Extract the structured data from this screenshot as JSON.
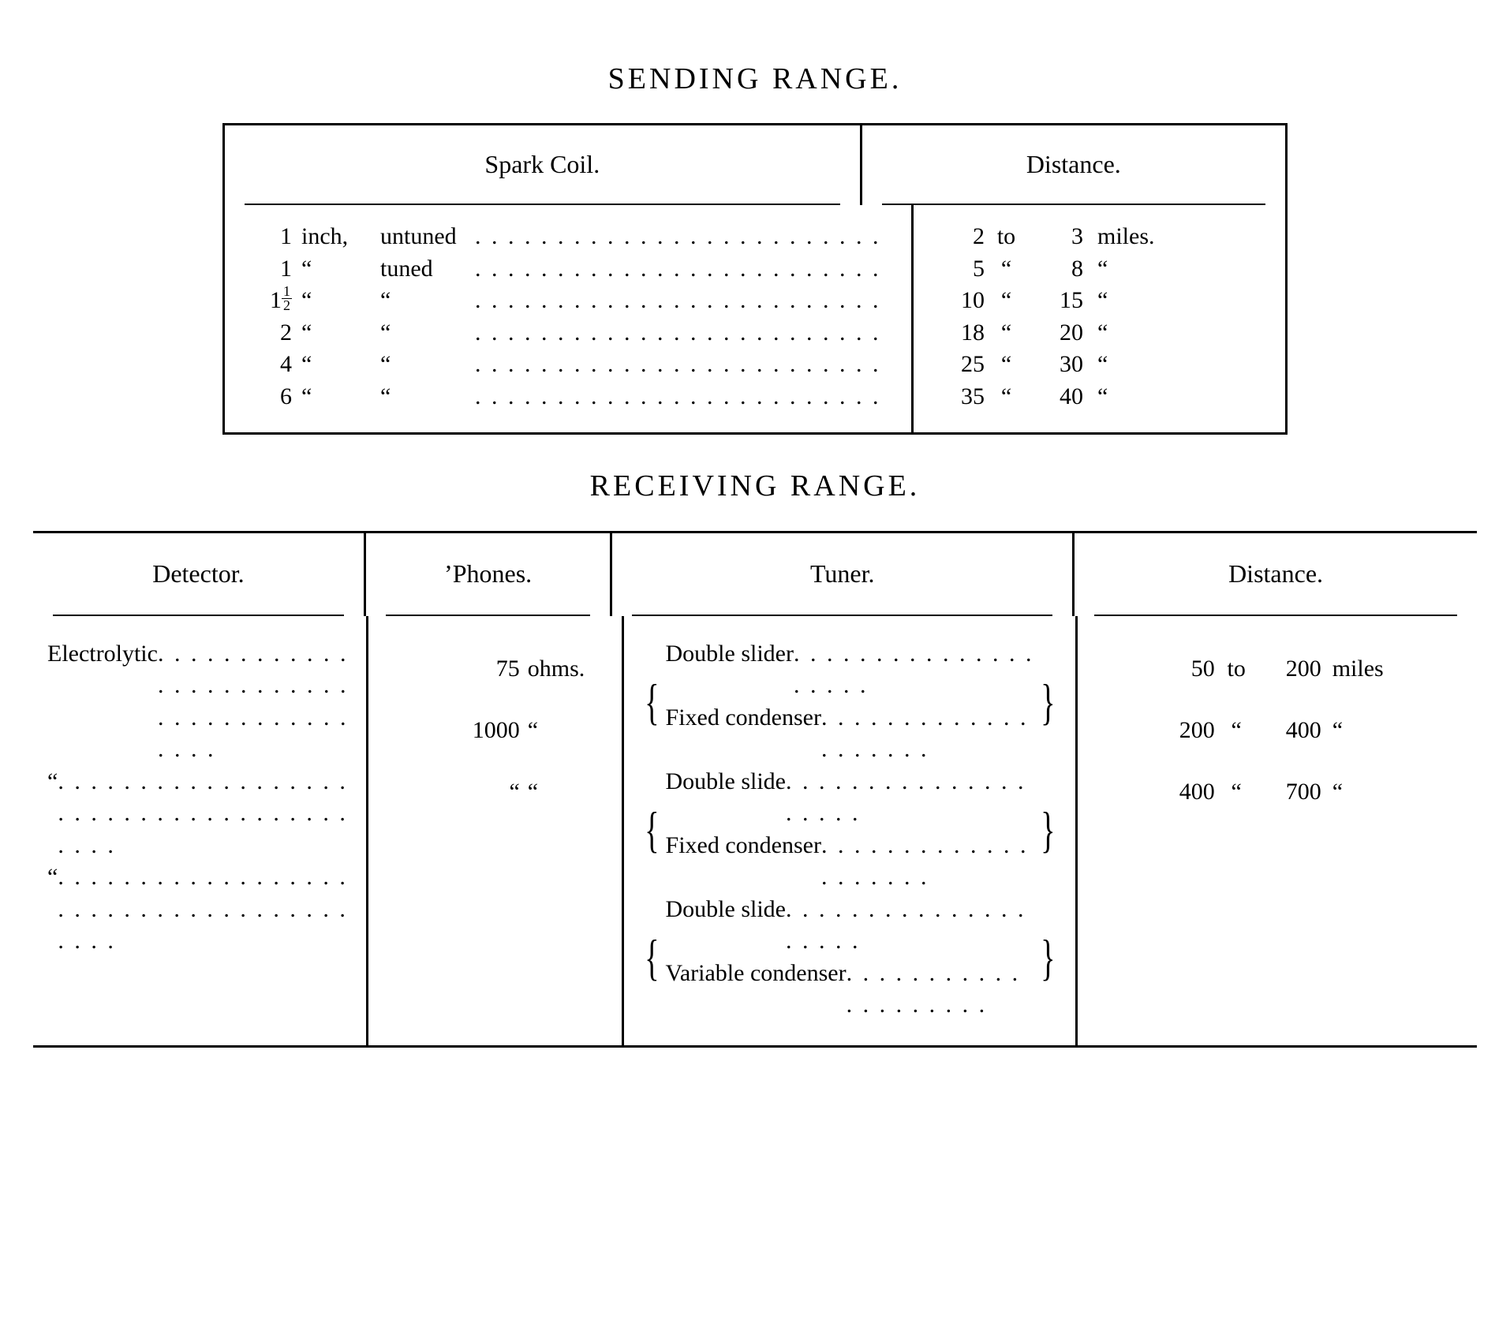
{
  "colors": {
    "fg": "#000000",
    "bg": "#ffffff",
    "rule": "#000000"
  },
  "typography": {
    "base_pt": 22,
    "title_pt": 28,
    "family": "serif"
  },
  "sending": {
    "title": "SENDING  RANGE.",
    "columns": [
      "Spark Coil.",
      "Distance."
    ],
    "rows": [
      {
        "size": "1",
        "size_frac": "",
        "unit": "inch,",
        "tune": "untuned",
        "dist_lo": "2",
        "dist_to": "to",
        "dist_hi": "3",
        "miles": "miles."
      },
      {
        "size": "1",
        "size_frac": "",
        "unit": "“",
        "tune": "tuned",
        "dist_lo": "5",
        "dist_to": "“",
        "dist_hi": "8",
        "miles": "“"
      },
      {
        "size": "1",
        "size_frac": "½",
        "unit": "“",
        "tune": "“",
        "dist_lo": "10",
        "dist_to": "“",
        "dist_hi": "15",
        "miles": "“"
      },
      {
        "size": "2",
        "size_frac": "",
        "unit": "“",
        "tune": "“",
        "dist_lo": "18",
        "dist_to": "“",
        "dist_hi": "20",
        "miles": "“"
      },
      {
        "size": "4",
        "size_frac": "",
        "unit": "“",
        "tune": "“",
        "dist_lo": "25",
        "dist_to": "“",
        "dist_hi": "30",
        "miles": "“"
      },
      {
        "size": "6",
        "size_frac": "",
        "unit": "“",
        "tune": "“",
        "dist_lo": "35",
        "dist_to": "“",
        "dist_hi": "40",
        "miles": "“"
      }
    ]
  },
  "receiving": {
    "title": "RECEIVING  RANGE.",
    "columns": [
      "Detector.",
      "’Phones.",
      "Tuner.",
      "Distance."
    ],
    "rows": [
      {
        "detector": "Electrolytic",
        "phones_val": "75",
        "phones_unit": "ohms.",
        "tuner": [
          "Double slider",
          "Fixed condenser"
        ],
        "dist_lo": "50",
        "dist_to": "to",
        "dist_hi": "200",
        "miles": "miles"
      },
      {
        "detector": "“",
        "phones_val": "1000",
        "phones_unit": "“",
        "tuner": [
          "Double slide",
          "Fixed condenser"
        ],
        "dist_lo": "200",
        "dist_to": "“",
        "dist_hi": "400",
        "miles": "“"
      },
      {
        "detector": "“",
        "phones_val": "“",
        "phones_unit": "“",
        "tuner": [
          "Double slide",
          "Variable condenser"
        ],
        "dist_lo": "400",
        "dist_to": "“",
        "dist_hi": "700",
        "miles": "“"
      }
    ]
  },
  "glyphs": {
    "dots": ". . . . . . . . . . . . . . . . . . . . . . . . . . . . . . . . . . . . . . . .",
    "lbrace": "{",
    "rbrace": "}"
  }
}
